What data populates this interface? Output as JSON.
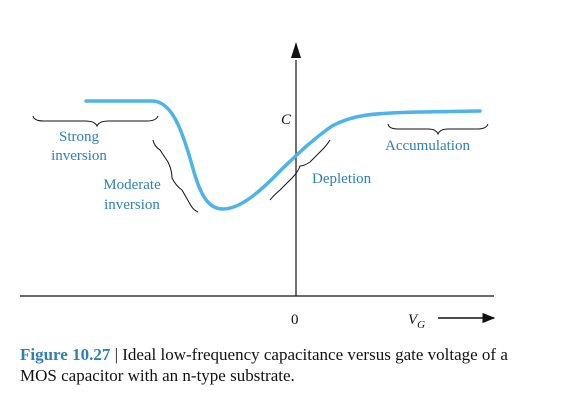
{
  "figure": {
    "y_axis_label": "C",
    "x_axis_label": "V",
    "x_axis_subscript": "G",
    "origin_label": "0",
    "regions": {
      "strong_inversion": [
        "Strong",
        "inversion"
      ],
      "moderate_inversion": [
        "Moderate",
        "inversion"
      ],
      "depletion": "Depletion",
      "accumulation": "Accumulation"
    }
  },
  "caption": {
    "number": "Figure 10.27",
    "separator": "|",
    "text": "Ideal low-frequency capacitance versus gate voltage of a MOS capacitor with an n-type substrate."
  },
  "colors": {
    "curve": "#4db3e8",
    "label": "#2f7fb7",
    "axis": "#111111"
  }
}
